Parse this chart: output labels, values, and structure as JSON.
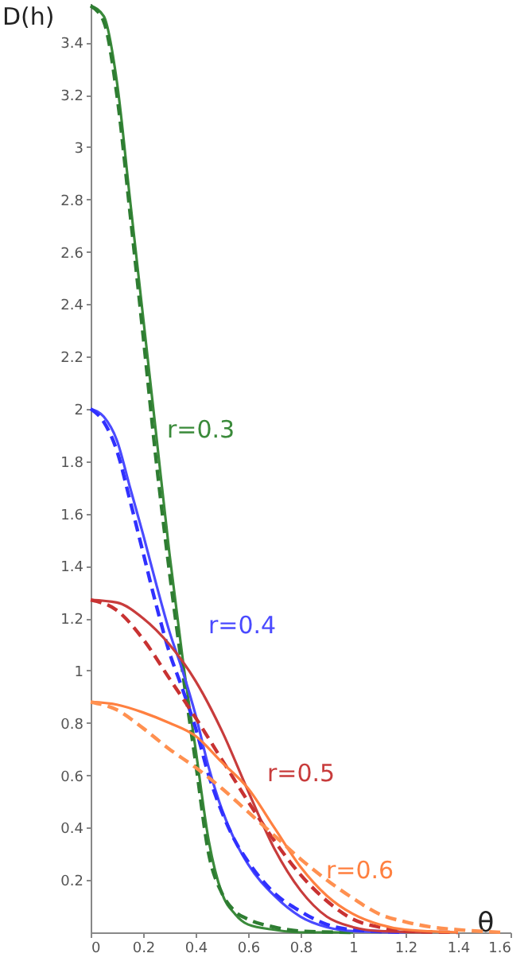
{
  "chart_data": {
    "type": "line",
    "xlabel": "θ",
    "ylabel": "D(h)",
    "xlim": [
      0,
      1.6
    ],
    "xticks": [
      0,
      0.2,
      0.4,
      0.6,
      0.8,
      1,
      1.2,
      1.4,
      1.6
    ],
    "ylim": [
      0,
      3.55
    ],
    "yticks": [
      0.2,
      0.4,
      0.6,
      0.8,
      1,
      1.2,
      1.4,
      1.6,
      1.8,
      2,
      2.2,
      2.4,
      2.6,
      2.8,
      3,
      3.2,
      3.4
    ],
    "grid": false,
    "series": [
      {
        "color": "#3a8a3a",
        "line_style": "solid",
        "x": [
          0,
          0.05,
          0.1,
          0.15,
          0.2,
          0.25,
          0.3,
          0.35,
          0.4,
          0.45,
          0.5,
          0.55,
          0.6,
          0.7,
          0.8,
          1.0
        ],
        "values": [
          3.54,
          3.5,
          3.25,
          2.8,
          2.35,
          1.9,
          1.45,
          1.05,
          0.7,
          0.35,
          0.15,
          0.07,
          0.03,
          0.01,
          0,
          0
        ]
      },
      {
        "color": "#2e7d32",
        "line_style": "dashed",
        "x": [
          0,
          0.05,
          0.1,
          0.15,
          0.2,
          0.25,
          0.3,
          0.35,
          0.4,
          0.45,
          0.5,
          0.55,
          0.6,
          0.7,
          0.8,
          1.0
        ],
        "values": [
          3.54,
          3.48,
          3.2,
          2.75,
          2.28,
          1.8,
          1.38,
          1.0,
          0.65,
          0.3,
          0.15,
          0.08,
          0.05,
          0.02,
          0.005,
          0
        ]
      },
      {
        "color": "#4a4aff",
        "line_style": "solid",
        "x": [
          0,
          0.05,
          0.1,
          0.15,
          0.2,
          0.25,
          0.3,
          0.35,
          0.4,
          0.45,
          0.5,
          0.55,
          0.6,
          0.7,
          0.8,
          0.9,
          1.0,
          1.2
        ],
        "values": [
          2.0,
          1.97,
          1.88,
          1.7,
          1.52,
          1.33,
          1.15,
          1.0,
          0.83,
          0.63,
          0.47,
          0.35,
          0.26,
          0.14,
          0.06,
          0.02,
          0.005,
          0
        ]
      },
      {
        "color": "#3030ff",
        "line_style": "dashed",
        "x": [
          0,
          0.05,
          0.1,
          0.15,
          0.2,
          0.25,
          0.3,
          0.35,
          0.4,
          0.45,
          0.5,
          0.55,
          0.6,
          0.7,
          0.8,
          0.9,
          1.0,
          1.2
        ],
        "values": [
          2.0,
          1.95,
          1.84,
          1.65,
          1.45,
          1.25,
          1.07,
          0.93,
          0.78,
          0.6,
          0.46,
          0.35,
          0.27,
          0.15,
          0.08,
          0.03,
          0.01,
          0
        ]
      },
      {
        "color": "#c83c3c",
        "line_style": "solid",
        "x": [
          0,
          0.1,
          0.2,
          0.3,
          0.4,
          0.5,
          0.6,
          0.7,
          0.8,
          0.9,
          1.0,
          1.1,
          1.3
        ],
        "values": [
          1.27,
          1.26,
          1.2,
          1.1,
          0.96,
          0.77,
          0.54,
          0.32,
          0.16,
          0.06,
          0.02,
          0.005,
          0
        ]
      },
      {
        "color": "#c83232",
        "line_style": "dashed",
        "x": [
          0,
          0.1,
          0.2,
          0.3,
          0.4,
          0.5,
          0.6,
          0.7,
          0.8,
          0.9,
          1.0,
          1.1,
          1.2,
          1.4
        ],
        "values": [
          1.27,
          1.23,
          1.12,
          0.97,
          0.82,
          0.66,
          0.5,
          0.35,
          0.22,
          0.12,
          0.05,
          0.02,
          0.005,
          0
        ]
      },
      {
        "color": "#ff8040",
        "line_style": "solid",
        "x": [
          0,
          0.1,
          0.2,
          0.3,
          0.4,
          0.5,
          0.6,
          0.7,
          0.8,
          0.9,
          1.0,
          1.1,
          1.2,
          1.4
        ],
        "values": [
          0.88,
          0.87,
          0.84,
          0.8,
          0.75,
          0.65,
          0.55,
          0.4,
          0.25,
          0.14,
          0.07,
          0.03,
          0.01,
          0
        ]
      },
      {
        "color": "#ff9050",
        "line_style": "dashed",
        "x": [
          0,
          0.1,
          0.2,
          0.3,
          0.4,
          0.5,
          0.6,
          0.7,
          0.8,
          0.9,
          1.0,
          1.1,
          1.2,
          1.3,
          1.4,
          1.57
        ],
        "values": [
          0.88,
          0.85,
          0.78,
          0.7,
          0.63,
          0.55,
          0.46,
          0.37,
          0.28,
          0.2,
          0.13,
          0.07,
          0.04,
          0.02,
          0.01,
          0
        ]
      }
    ],
    "annotations": [
      "r=0.3",
      "r=0.4",
      "r=0.5",
      "r=0.6"
    ]
  }
}
